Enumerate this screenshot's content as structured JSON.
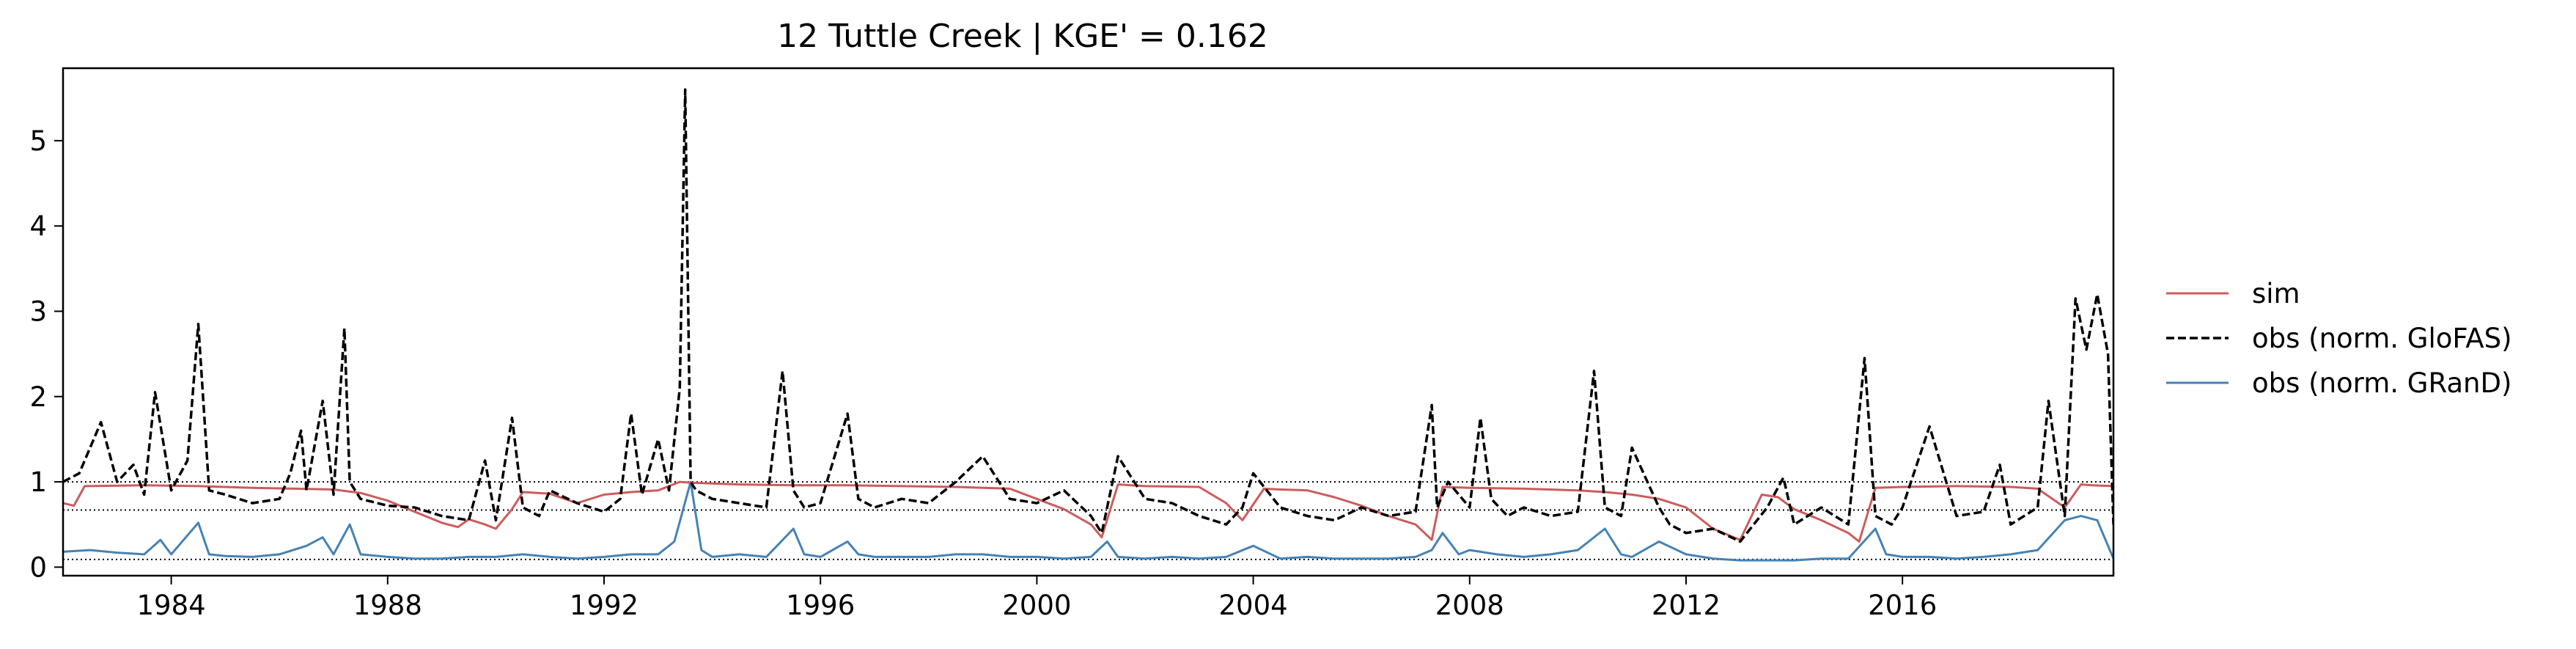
{
  "chart_data": {
    "type": "line",
    "title": "12  Tuttle Creek | KGE' = 0.162",
    "xlabel": "",
    "ylabel": "",
    "xlim": [
      1982.0,
      2019.9
    ],
    "ylim": [
      -0.1,
      5.85
    ],
    "x_ticks": [
      1984,
      1988,
      1992,
      1996,
      2000,
      2004,
      2008,
      2012,
      2016
    ],
    "y_ticks": [
      0,
      1,
      2,
      3,
      4,
      5
    ],
    "grid": false,
    "legend_position": "right-outside",
    "reference_lines": [
      1.0,
      0.67,
      0.09
    ],
    "series": [
      {
        "name": "sim",
        "color": "#cd5c5c",
        "style": "solid",
        "x": [
          1982.0,
          1982.2,
          1982.4,
          1983.5,
          1984.5,
          1985.5,
          1986.3,
          1987.0,
          1987.5,
          1988.0,
          1988.5,
          1989.0,
          1989.3,
          1989.5,
          1989.8,
          1990.0,
          1990.3,
          1990.5,
          1991.0,
          1991.5,
          1992.0,
          1992.5,
          1993.0,
          1993.4,
          1993.6,
          1994.5,
          1995.5,
          1996.5,
          1997.5,
          1998.5,
          1999.5,
          2000.0,
          2000.5,
          2001.0,
          2001.2,
          2001.5,
          2002.0,
          2003.0,
          2003.5,
          2003.8,
          2004.2,
          2004.5,
          2005.0,
          2005.5,
          2006.0,
          2006.5,
          2007.0,
          2007.3,
          2007.5,
          2008.0,
          2009.0,
          2010.0,
          2010.5,
          2011.0,
          2011.5,
          2012.0,
          2012.5,
          2013.0,
          2013.4,
          2013.7,
          2014.0,
          2014.5,
          2015.0,
          2015.2,
          2015.5,
          2016.0,
          2017.0,
          2018.0,
          2018.5,
          2019.0,
          2019.3,
          2019.5,
          2019.9
        ],
        "y": [
          0.75,
          0.72,
          0.95,
          0.96,
          0.95,
          0.93,
          0.92,
          0.91,
          0.87,
          0.78,
          0.65,
          0.52,
          0.47,
          0.56,
          0.5,
          0.45,
          0.68,
          0.88,
          0.86,
          0.75,
          0.85,
          0.88,
          0.9,
          1.0,
          0.99,
          0.97,
          0.96,
          0.96,
          0.95,
          0.94,
          0.92,
          0.8,
          0.68,
          0.5,
          0.35,
          0.97,
          0.95,
          0.94,
          0.75,
          0.55,
          0.92,
          0.91,
          0.9,
          0.82,
          0.72,
          0.6,
          0.5,
          0.32,
          0.94,
          0.93,
          0.92,
          0.9,
          0.88,
          0.85,
          0.8,
          0.7,
          0.45,
          0.32,
          0.85,
          0.82,
          0.68,
          0.55,
          0.4,
          0.3,
          0.93,
          0.94,
          0.95,
          0.94,
          0.92,
          0.7,
          0.97,
          0.96,
          0.95
        ]
      },
      {
        "name": "obs (norm. GloFAS)",
        "color": "#000000",
        "style": "dashed",
        "x": [
          1982.0,
          1982.3,
          1982.7,
          1983.0,
          1983.3,
          1983.5,
          1983.7,
          1984.0,
          1984.3,
          1984.5,
          1984.7,
          1985.0,
          1985.5,
          1986.0,
          1986.2,
          1986.4,
          1986.5,
          1986.8,
          1987.0,
          1987.2,
          1987.3,
          1987.5,
          1988.0,
          1988.5,
          1989.0,
          1989.5,
          1989.8,
          1990.0,
          1990.3,
          1990.5,
          1990.8,
          1991.0,
          1991.5,
          1992.0,
          1992.3,
          1992.5,
          1992.7,
          1993.0,
          1993.2,
          1993.4,
          1993.5,
          1993.6,
          1993.7,
          1994.0,
          1994.5,
          1995.0,
          1995.3,
          1995.5,
          1995.7,
          1996.0,
          1996.5,
          1996.7,
          1997.0,
          1997.5,
          1998.0,
          1998.5,
          1999.0,
          1999.5,
          2000.0,
          2000.5,
          2001.0,
          2001.2,
          2001.5,
          2002.0,
          2002.5,
          2003.0,
          2003.5,
          2003.8,
          2004.0,
          2004.5,
          2005.0,
          2005.5,
          2006.0,
          2006.5,
          2007.0,
          2007.3,
          2007.4,
          2007.6,
          2008.0,
          2008.2,
          2008.4,
          2008.7,
          2009.0,
          2009.5,
          2010.0,
          2010.3,
          2010.5,
          2010.8,
          2011.0,
          2011.5,
          2011.7,
          2012.0,
          2012.5,
          2013.0,
          2013.5,
          2013.8,
          2014.0,
          2014.5,
          2015.0,
          2015.3,
          2015.5,
          2015.8,
          2016.0,
          2016.5,
          2017.0,
          2017.5,
          2017.8,
          2018.0,
          2018.5,
          2018.7,
          2019.0,
          2019.2,
          2019.4,
          2019.6,
          2019.8,
          2019.9
        ],
        "y": [
          1.0,
          1.1,
          1.7,
          1.0,
          1.2,
          0.85,
          2.05,
          0.9,
          1.25,
          2.85,
          0.9,
          0.85,
          0.75,
          0.8,
          1.1,
          1.6,
          0.9,
          1.95,
          0.85,
          2.8,
          1.0,
          0.8,
          0.72,
          0.7,
          0.6,
          0.55,
          1.25,
          0.55,
          1.75,
          0.7,
          0.6,
          0.9,
          0.75,
          0.65,
          0.8,
          1.8,
          0.85,
          1.5,
          0.9,
          2.1,
          5.6,
          1.0,
          0.9,
          0.8,
          0.75,
          0.7,
          2.3,
          0.9,
          0.7,
          0.75,
          1.8,
          0.8,
          0.7,
          0.8,
          0.75,
          1.0,
          1.3,
          0.8,
          0.75,
          0.9,
          0.6,
          0.4,
          1.3,
          0.8,
          0.75,
          0.6,
          0.5,
          0.7,
          1.1,
          0.7,
          0.6,
          0.55,
          0.7,
          0.6,
          0.65,
          1.9,
          0.7,
          1.0,
          0.7,
          1.75,
          0.8,
          0.6,
          0.7,
          0.6,
          0.65,
          2.3,
          0.7,
          0.6,
          1.4,
          0.7,
          0.5,
          0.4,
          0.45,
          0.3,
          0.7,
          1.05,
          0.5,
          0.7,
          0.5,
          2.45,
          0.6,
          0.5,
          0.7,
          1.65,
          0.6,
          0.65,
          1.2,
          0.5,
          0.7,
          1.95,
          0.6,
          3.15,
          2.55,
          3.2,
          2.5,
          0.5
        ]
      },
      {
        "name": "obs (norm. GRanD)",
        "color": "#4682b4",
        "style": "solid",
        "x": [
          1982.0,
          1982.5,
          1983.0,
          1983.5,
          1983.8,
          1984.0,
          1984.5,
          1984.7,
          1985.0,
          1985.5,
          1986.0,
          1986.5,
          1986.8,
          1987.0,
          1987.3,
          1987.5,
          1988.0,
          1988.5,
          1989.0,
          1989.5,
          1990.0,
          1990.5,
          1991.0,
          1991.5,
          1992.0,
          1992.5,
          1993.0,
          1993.3,
          1993.6,
          1993.8,
          1994.0,
          1994.5,
          1995.0,
          1995.5,
          1995.7,
          1996.0,
          1996.5,
          1996.7,
          1997.0,
          1997.5,
          1998.0,
          1998.5,
          1999.0,
          1999.5,
          2000.0,
          2000.5,
          2001.0,
          2001.3,
          2001.5,
          2002.0,
          2002.5,
          2003.0,
          2003.5,
          2004.0,
          2004.5,
          2005.0,
          2005.5,
          2006.0,
          2006.5,
          2007.0,
          2007.3,
          2007.5,
          2007.8,
          2008.0,
          2008.5,
          2009.0,
          2009.5,
          2010.0,
          2010.5,
          2010.8,
          2011.0,
          2011.5,
          2012.0,
          2012.5,
          2013.0,
          2013.5,
          2014.0,
          2014.5,
          2015.0,
          2015.5,
          2015.7,
          2016.0,
          2016.5,
          2017.0,
          2017.5,
          2018.0,
          2018.5,
          2019.0,
          2019.3,
          2019.6,
          2019.9
        ],
        "y": [
          0.18,
          0.2,
          0.17,
          0.15,
          0.32,
          0.15,
          0.52,
          0.15,
          0.13,
          0.12,
          0.15,
          0.25,
          0.35,
          0.15,
          0.5,
          0.15,
          0.12,
          0.1,
          0.1,
          0.12,
          0.12,
          0.15,
          0.12,
          0.1,
          0.12,
          0.15,
          0.15,
          0.3,
          1.0,
          0.2,
          0.12,
          0.15,
          0.12,
          0.45,
          0.15,
          0.12,
          0.3,
          0.15,
          0.12,
          0.12,
          0.12,
          0.15,
          0.15,
          0.12,
          0.12,
          0.1,
          0.12,
          0.3,
          0.12,
          0.1,
          0.12,
          0.1,
          0.12,
          0.25,
          0.1,
          0.12,
          0.1,
          0.1,
          0.1,
          0.12,
          0.2,
          0.4,
          0.15,
          0.2,
          0.15,
          0.12,
          0.15,
          0.2,
          0.45,
          0.15,
          0.12,
          0.3,
          0.15,
          0.1,
          0.08,
          0.08,
          0.08,
          0.1,
          0.1,
          0.45,
          0.15,
          0.12,
          0.12,
          0.1,
          0.12,
          0.15,
          0.2,
          0.55,
          0.6,
          0.55,
          0.1
        ]
      }
    ]
  }
}
